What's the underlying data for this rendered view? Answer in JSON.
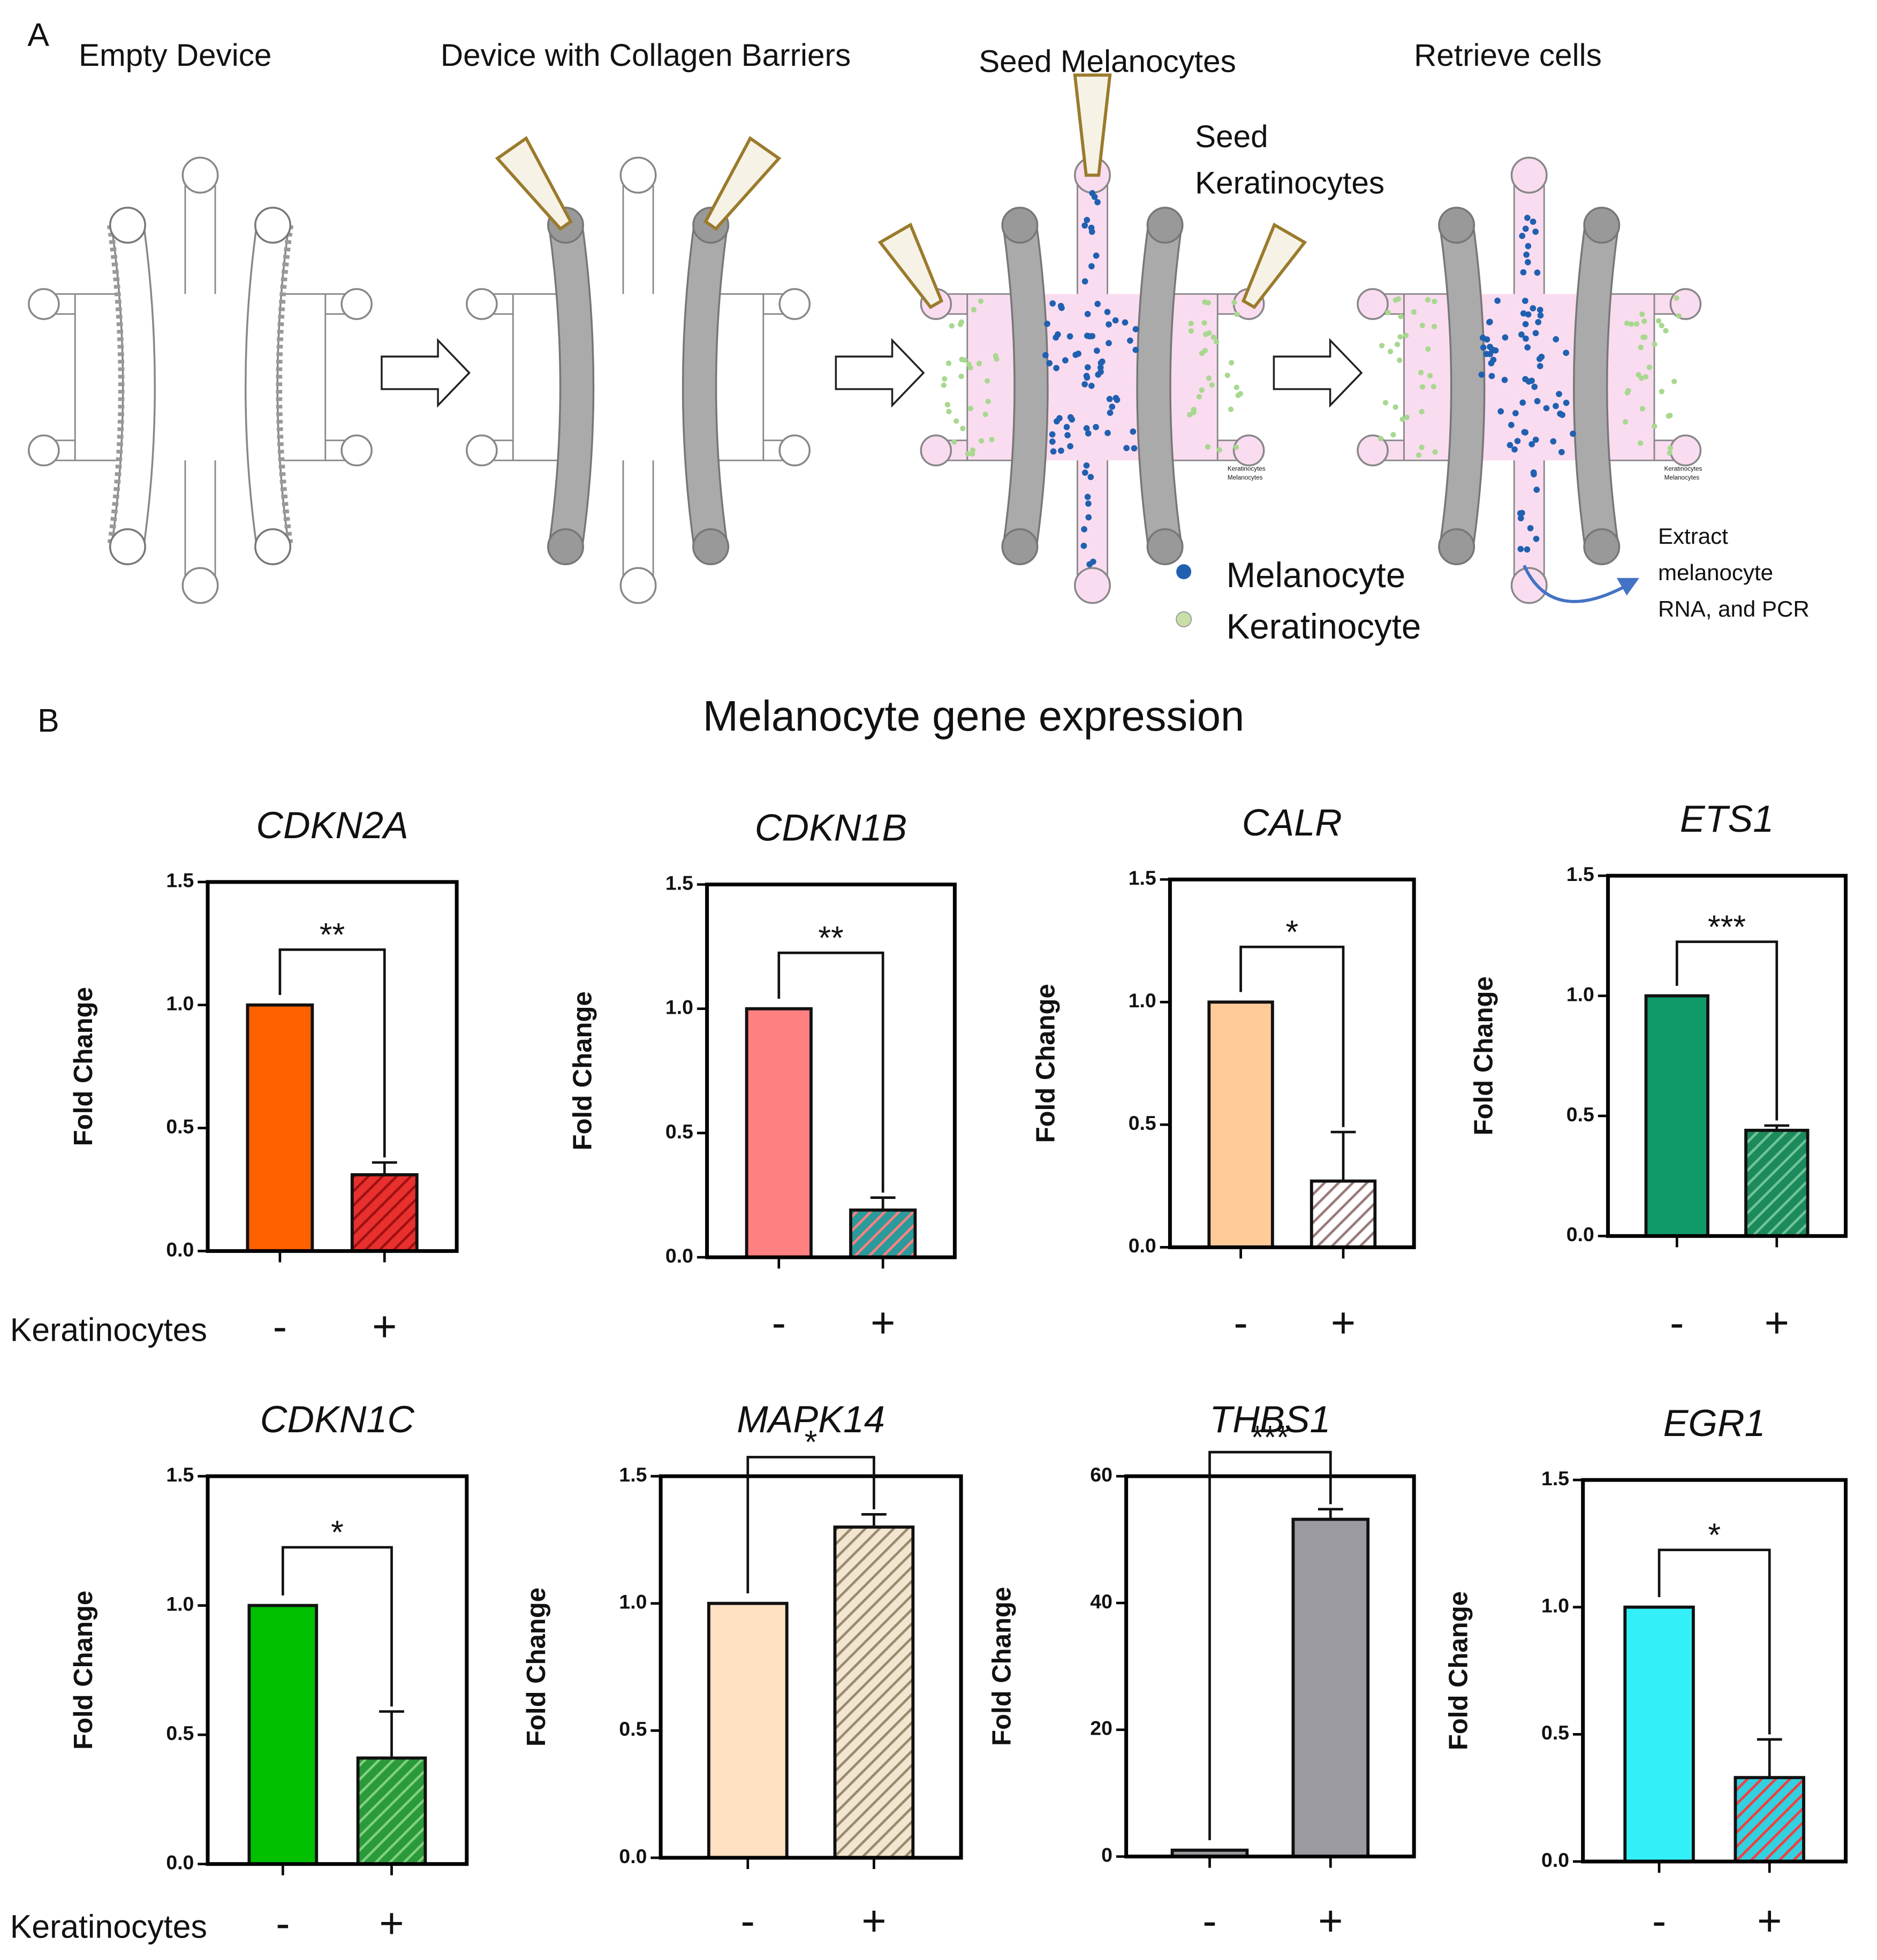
{
  "panel_a": {
    "label": "A",
    "steps": [
      "Empty Device",
      "Device with Collagen Barriers",
      "Seed Melanocytes",
      "Retrieve cells"
    ],
    "seed_keratinocytes": [
      "Seed",
      "Keratinocytes"
    ],
    "legend": [
      "Melanocyte",
      "Keratinocyte"
    ],
    "mini_legend": [
      "Keratinocytes",
      "Melanocytes"
    ],
    "note": [
      "Extract",
      "melanocyte",
      "RNA, and PCR"
    ]
  },
  "panel_b": {
    "label": "B",
    "title": "Melanocyte gene expression"
  },
  "chart_data": [
    {
      "type": "bar",
      "title": "CDKN2A",
      "ylabel": "Fold Change",
      "xlabel": "Keratinocytes",
      "categories": [
        "-",
        "+"
      ],
      "values": [
        1,
        0.31
      ],
      "errors": [
        null,
        0.05
      ],
      "colors": [
        "#ff6000",
        "#e8302f"
      ],
      "hatch": [
        null,
        "#a01010"
      ],
      "significance": "**",
      "ylim": [
        0,
        1.5
      ],
      "yticks": [
        {
          "value": 0,
          "label": "0.0"
        },
        0.5,
        {
          "value": 1,
          "label": "1.0"
        },
        1.5
      ]
    },
    {
      "type": "bar",
      "title": "CDKN1B",
      "ylabel": "Fold Change",
      "categories": [
        "-",
        "+"
      ],
      "values": [
        1,
        0.19
      ],
      "errors": [
        null,
        0.05
      ],
      "colors": [
        "#ff8080",
        "#2a9a9a"
      ],
      "hatch": [
        null,
        "#ff8080"
      ],
      "significance": "**",
      "ylim": [
        0,
        1.5
      ],
      "yticks": [
        {
          "value": 0,
          "label": "0.0"
        },
        0.5,
        {
          "value": 1,
          "label": "1.0"
        },
        1.5
      ]
    },
    {
      "type": "bar",
      "title": "CALR",
      "ylabel": "Fold Change",
      "categories": [
        "-",
        "+"
      ],
      "values": [
        1,
        0.27
      ],
      "errors": [
        null,
        0.2
      ],
      "colors": [
        "#ffcc99",
        "#ffffff"
      ],
      "hatch": [
        null,
        "#9a7a7a"
      ],
      "significance": "*",
      "ylim": [
        0,
        1.5
      ],
      "yticks": [
        {
          "value": 0,
          "label": "0.0"
        },
        0.5,
        {
          "value": 1,
          "label": "1.0"
        },
        1.5
      ]
    },
    {
      "type": "bar",
      "title": "ETS1",
      "ylabel": "Fold Change",
      "categories": [
        "-",
        "+"
      ],
      "values": [
        1,
        0.44
      ],
      "errors": [
        null,
        0.02
      ],
      "colors": [
        "#109a68",
        "#1d8a5c"
      ],
      "hatch": [
        null,
        "#6fc49a"
      ],
      "significance": "***",
      "ylim": [
        0,
        1.5
      ],
      "yticks": [
        {
          "value": 0,
          "label": "0.0"
        },
        0.5,
        {
          "value": 1,
          "label": "1.0"
        },
        1.5
      ]
    },
    {
      "type": "bar",
      "title": "CDKN1C",
      "ylabel": "Fold Change",
      "xlabel": "Keratinocytes",
      "categories": [
        "-",
        "+"
      ],
      "values": [
        1,
        0.41
      ],
      "errors": [
        null,
        0.18
      ],
      "colors": [
        "#00c000",
        "#2a9a3a"
      ],
      "hatch": [
        null,
        "#80d080"
      ],
      "significance": "*",
      "ylim": [
        0,
        1.5
      ],
      "yticks": [
        {
          "value": 0,
          "label": "0.0"
        },
        0.5,
        {
          "value": 1,
          "label": "1.0"
        },
        1.5
      ]
    },
    {
      "type": "bar",
      "title": "MAPK14",
      "ylabel": "Fold Change",
      "categories": [
        "-",
        "+"
      ],
      "values": [
        1,
        1.3
      ],
      "errors": [
        null,
        0.05
      ],
      "colors": [
        "#ffe0c0",
        "#f3e6d0"
      ],
      "hatch": [
        null,
        "#9a8a70"
      ],
      "significance": "*",
      "ylim": [
        0,
        1.5
      ],
      "yticks": [
        {
          "value": 0,
          "label": "0.0"
        },
        0.5,
        {
          "value": 1,
          "label": "1.0"
        },
        1.5
      ]
    },
    {
      "type": "bar",
      "title": "THBS1",
      "ylabel": "Fold Change",
      "categories": [
        "-",
        "+"
      ],
      "values": [
        1,
        53.2
      ],
      "errors": [
        null,
        1.6
      ],
      "colors": [
        "#9a9aa0",
        "#9a9aa0"
      ],
      "hatch": [
        null,
        null
      ],
      "significance": "***",
      "ylim": [
        0,
        60
      ],
      "yticks": [
        0,
        20,
        40,
        60
      ]
    },
    {
      "type": "bar",
      "title": "EGR1",
      "ylabel": "Fold Change",
      "categories": [
        "-",
        "+"
      ],
      "values": [
        1,
        0.33
      ],
      "errors": [
        null,
        0.15
      ],
      "colors": [
        "#33f0f8",
        "#33d0e0"
      ],
      "hatch": [
        null,
        "#f04040"
      ],
      "significance": "*",
      "ylim": [
        0,
        1.5
      ],
      "yticks": [
        {
          "value": 0,
          "label": "0.0"
        },
        0.5,
        {
          "value": 1,
          "label": "1.0"
        },
        1.5
      ]
    }
  ]
}
